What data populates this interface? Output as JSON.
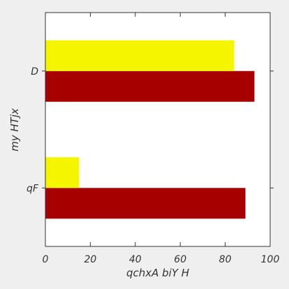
{
  "chart_data": {
    "type": "bar",
    "orientation": "horizontal",
    "title": "",
    "xlabel": "qchxA biY H",
    "ylabel": "my HTjx",
    "categories": [
      "qF",
      "D"
    ],
    "series": [
      {
        "values": [
          89,
          93
        ],
        "color": "#a60000"
      },
      {
        "values": [
          15,
          84
        ],
        "color": "#f5f500"
      }
    ],
    "xlim": [
      0,
      100
    ],
    "xticks": [
      "0",
      "20",
      "40",
      "60",
      "80",
      "100"
    ],
    "grid": false,
    "legend": "none",
    "background": "#efefef",
    "plot_background": "#ffffff"
  }
}
